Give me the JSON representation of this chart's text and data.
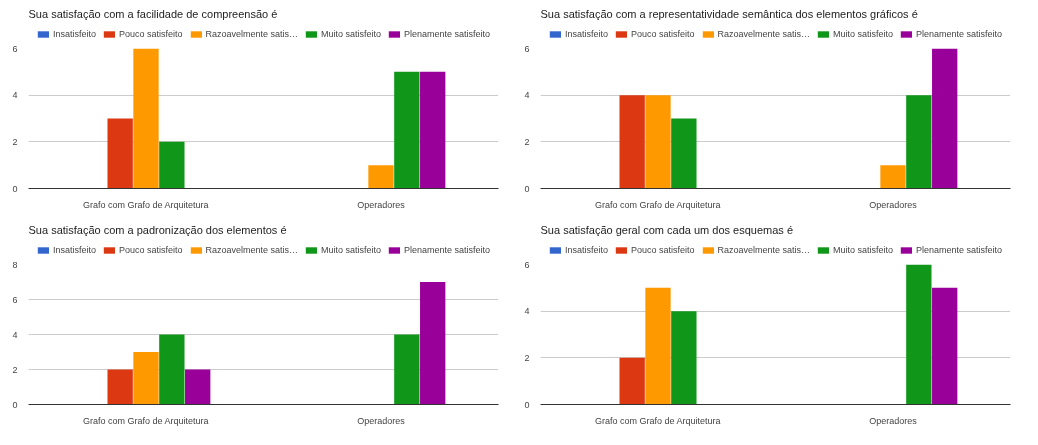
{
  "chart_data": [
    {
      "type": "bar",
      "title": "Sua satisfação com a facilidade de compreensão é",
      "categories": [
        "Grafo com Grafo de Arquitetura",
        "Operadores"
      ],
      "ylim": [
        0,
        6
      ],
      "yticks": [
        0,
        2,
        4,
        6
      ],
      "grid": "y",
      "legend": "top",
      "series": [
        {
          "name": "Insatisfeito",
          "color": "#3366cc",
          "values": [
            0,
            0
          ]
        },
        {
          "name": "Pouco satisfeito",
          "color": "#dc3912",
          "values": [
            3,
            0
          ]
        },
        {
          "name": "Razoavelmente satis…",
          "color": "#ff9900",
          "values": [
            6,
            1
          ]
        },
        {
          "name": "Muito satisfeito",
          "color": "#109618",
          "values": [
            2,
            5
          ]
        },
        {
          "name": "Plenamente satisfeito",
          "color": "#990099",
          "values": [
            0,
            5
          ]
        }
      ]
    },
    {
      "type": "bar",
      "title": "Sua satisfação com a representatividade semântica dos elementos gráficos é",
      "categories": [
        "Grafo com Grafo de Arquitetura",
        "Operadores"
      ],
      "ylim": [
        0,
        6
      ],
      "yticks": [
        0,
        2,
        4,
        6
      ],
      "grid": "y",
      "legend": "top",
      "series": [
        {
          "name": "Insatisfeito",
          "color": "#3366cc",
          "values": [
            0,
            0
          ]
        },
        {
          "name": "Pouco satisfeito",
          "color": "#dc3912",
          "values": [
            4,
            0
          ]
        },
        {
          "name": "Razoavelmente satis…",
          "color": "#ff9900",
          "values": [
            4,
            1
          ]
        },
        {
          "name": "Muito satisfeito",
          "color": "#109618",
          "values": [
            3,
            4
          ]
        },
        {
          "name": "Plenamente satisfeito",
          "color": "#990099",
          "values": [
            0,
            6
          ]
        }
      ]
    },
    {
      "type": "bar",
      "title": "Sua satisfação com a padronização dos elementos é",
      "categories": [
        "Grafo com Grafo de Arquitetura",
        "Operadores"
      ],
      "ylim": [
        0,
        8
      ],
      "yticks": [
        0,
        2,
        4,
        6,
        8
      ],
      "grid": "y",
      "legend": "top",
      "series": [
        {
          "name": "Insatisfeito",
          "color": "#3366cc",
          "values": [
            0,
            0
          ]
        },
        {
          "name": "Pouco satisfeito",
          "color": "#dc3912",
          "values": [
            2,
            0
          ]
        },
        {
          "name": "Razoavelmente satis…",
          "color": "#ff9900",
          "values": [
            3,
            0
          ]
        },
        {
          "name": "Muito satisfeito",
          "color": "#109618",
          "values": [
            4,
            4
          ]
        },
        {
          "name": "Plenamente satisfeito",
          "color": "#990099",
          "values": [
            2,
            7
          ]
        }
      ]
    },
    {
      "type": "bar",
      "title": "Sua satisfação geral com cada um dos esquemas é",
      "categories": [
        "Grafo com Grafo de Arquitetura",
        "Operadores"
      ],
      "ylim": [
        0,
        6
      ],
      "yticks": [
        0,
        2,
        4,
        6
      ],
      "grid": "y",
      "legend": "top",
      "series": [
        {
          "name": "Insatisfeito",
          "color": "#3366cc",
          "values": [
            0,
            0
          ]
        },
        {
          "name": "Pouco satisfeito",
          "color": "#dc3912",
          "values": [
            2,
            0
          ]
        },
        {
          "name": "Razoavelmente satis…",
          "color": "#ff9900",
          "values": [
            5,
            0
          ]
        },
        {
          "name": "Muito satisfeito",
          "color": "#109618",
          "values": [
            4,
            6
          ]
        },
        {
          "name": "Plenamente satisfeito",
          "color": "#990099",
          "values": [
            0,
            5
          ]
        }
      ]
    }
  ]
}
